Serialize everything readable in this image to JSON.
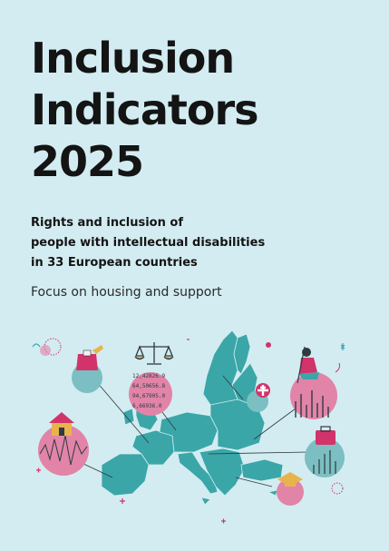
{
  "cover": {
    "title_lines": [
      "Inclusion",
      "Indicators",
      "2025"
    ],
    "subtitle_lines": [
      "Rights and inclusion of",
      "people with intellectual disabilities",
      "in 33 European countries"
    ],
    "focus": "Focus on housing and support"
  },
  "illustration": {
    "numbers": [
      "12,42826.9",
      "64,50656.8",
      "94,67905.0",
      "6,66936.0"
    ],
    "colors": {
      "background": "#d3ecf1",
      "map": "#3aa6a8",
      "pink": "#e184a8",
      "teal": "#7bbfc2",
      "magenta": "#d2336b",
      "gold": "#e7b44c"
    }
  }
}
